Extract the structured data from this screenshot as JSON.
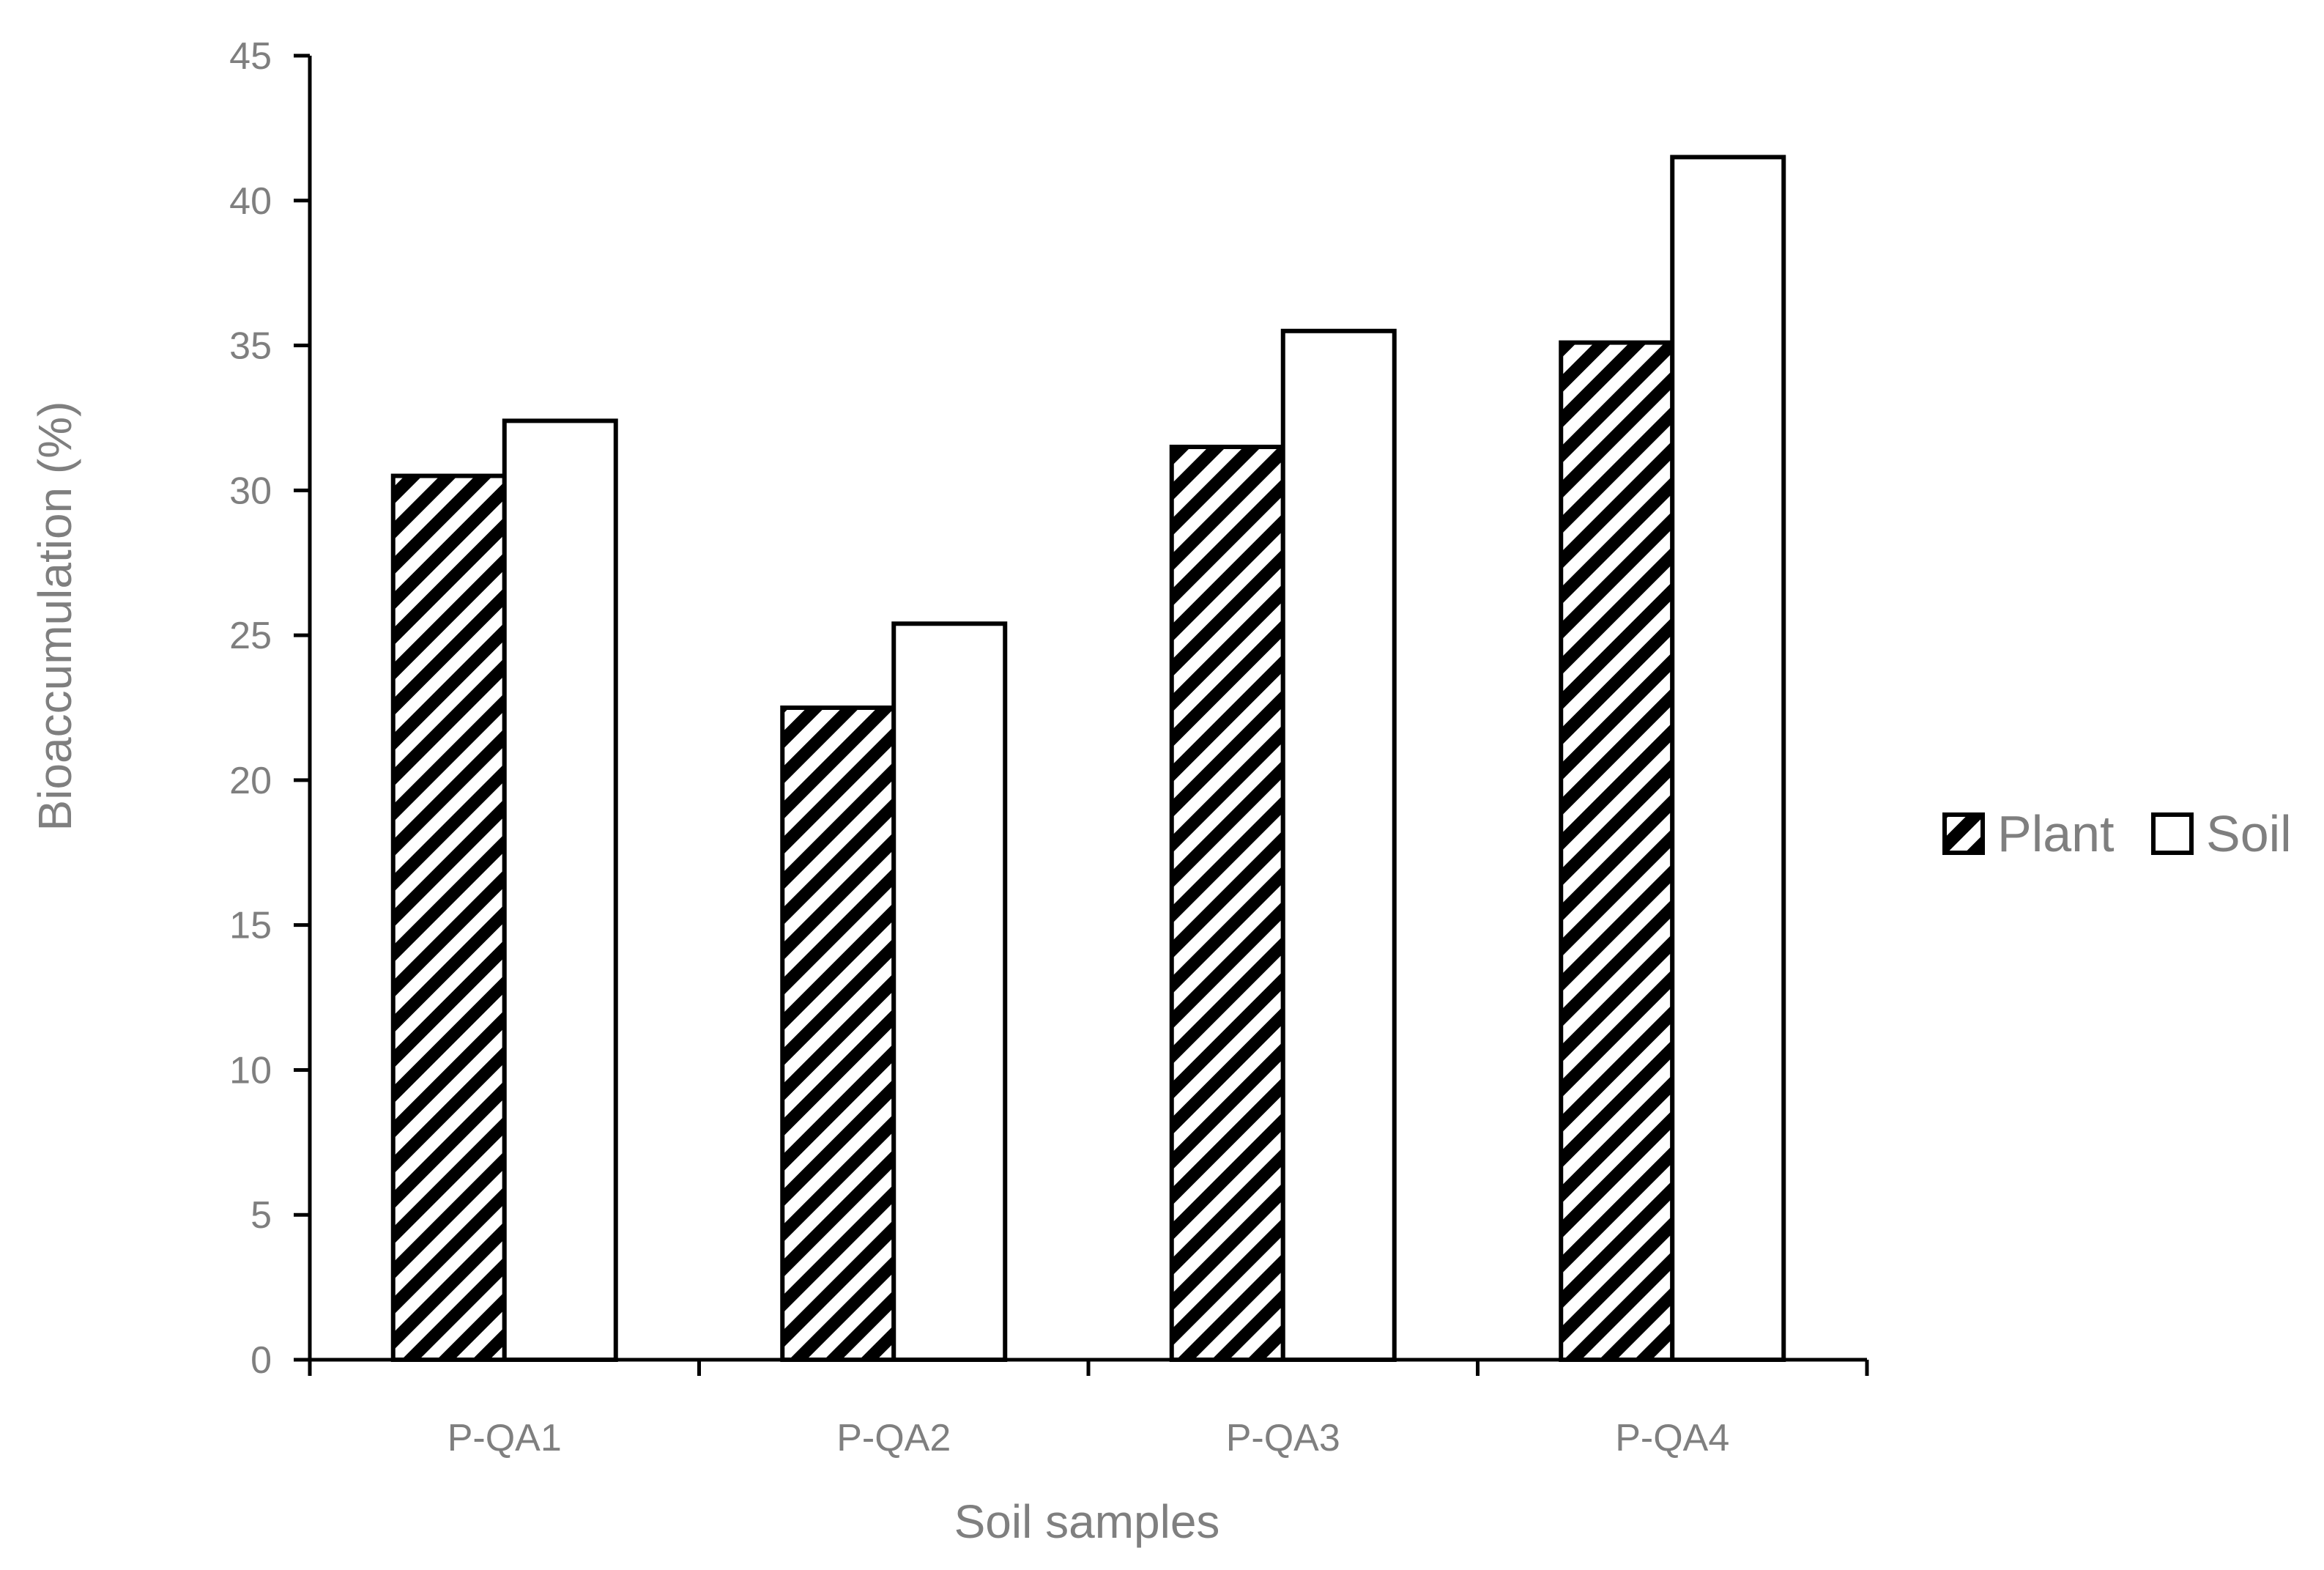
{
  "chart_data": {
    "type": "bar",
    "title": "",
    "xlabel": "Soil samples",
    "ylabel": "Bioaccumulation (%)",
    "ylim": [
      0,
      45
    ],
    "yticks": [
      0,
      5,
      10,
      15,
      20,
      25,
      30,
      35,
      40,
      45
    ],
    "categories": [
      "P-QA1",
      "P-QA2",
      "P-QA3",
      "P-QA4"
    ],
    "series": [
      {
        "name": "Plant",
        "values": [
          30.5,
          22.5,
          31.5,
          35.1
        ],
        "fill": "hatched"
      },
      {
        "name": "Soil",
        "values": [
          32.4,
          25.4,
          35.5,
          41.5
        ],
        "fill": "white"
      }
    ],
    "grid": false,
    "legend_position": "right"
  },
  "colors": {
    "stroke": "#000000",
    "text": "#7f7f7f",
    "background": "#ffffff"
  }
}
